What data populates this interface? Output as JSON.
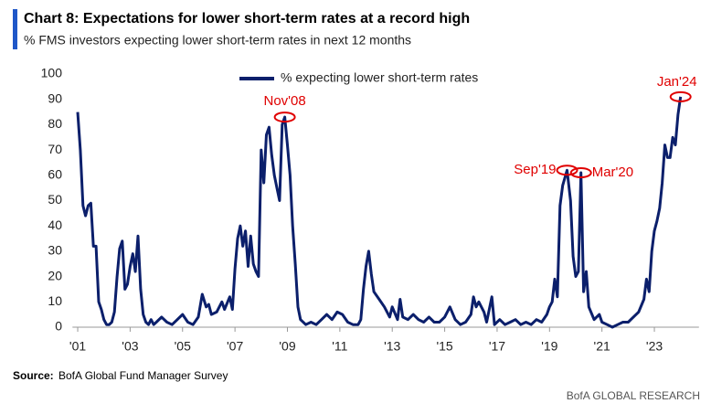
{
  "chart_data": {
    "type": "line",
    "title": "Chart 8: Expectations for lower short-term rates at a record high",
    "subtitle": "% FMS investors expecting lower short-term rates in next 12 months",
    "source_label": "Source:",
    "source": "BofA Global Fund Manager Survey",
    "brand": "BofA GLOBAL RESEARCH",
    "legend_position": "top",
    "grid": false,
    "xlim": [
      2000.8,
      2024.7
    ],
    "xticks": [
      {
        "value": 2001,
        "label": "'01"
      },
      {
        "value": 2003,
        "label": "'03"
      },
      {
        "value": 2005,
        "label": "'05"
      },
      {
        "value": 2007,
        "label": "'07"
      },
      {
        "value": 2009,
        "label": "'09"
      },
      {
        "value": 2011,
        "label": "'11"
      },
      {
        "value": 2013,
        "label": "'13"
      },
      {
        "value": 2015,
        "label": "'15"
      },
      {
        "value": 2017,
        "label": "'17"
      },
      {
        "value": 2019,
        "label": "'19"
      },
      {
        "value": 2021,
        "label": "'21"
      },
      {
        "value": 2023,
        "label": "'23"
      }
    ],
    "ylim": [
      0,
      100
    ],
    "yticks": [
      0,
      10,
      20,
      30,
      40,
      50,
      60,
      70,
      80,
      90,
      100
    ],
    "x": [
      2001.0,
      2001.1,
      2001.2,
      2001.3,
      2001.4,
      2001.5,
      2001.6,
      2001.7,
      2001.8,
      2001.9,
      2002.0,
      2002.1,
      2002.2,
      2002.3,
      2002.4,
      2002.5,
      2002.6,
      2002.7,
      2002.8,
      2002.9,
      2003.0,
      2003.1,
      2003.2,
      2003.3,
      2003.4,
      2003.5,
      2003.6,
      2003.7,
      2003.8,
      2003.9,
      2004.0,
      2004.2,
      2004.4,
      2004.6,
      2004.8,
      2005.0,
      2005.2,
      2005.4,
      2005.6,
      2005.75,
      2005.9,
      2006.0,
      2006.1,
      2006.3,
      2006.5,
      2006.6,
      2006.8,
      2006.9,
      2007.0,
      2007.1,
      2007.2,
      2007.3,
      2007.4,
      2007.5,
      2007.6,
      2007.7,
      2007.8,
      2007.9,
      2008.0,
      2008.1,
      2008.2,
      2008.3,
      2008.4,
      2008.5,
      2008.6,
      2008.7,
      2008.8,
      2008.9,
      2009.0,
      2009.1,
      2009.2,
      2009.3,
      2009.4,
      2009.5,
      2009.7,
      2009.9,
      2010.1,
      2010.3,
      2010.5,
      2010.7,
      2010.9,
      2011.1,
      2011.3,
      2011.5,
      2011.7,
      2011.8,
      2011.9,
      2012.0,
      2012.1,
      2012.2,
      2012.3,
      2012.5,
      2012.7,
      2012.9,
      2013.0,
      2013.2,
      2013.3,
      2013.4,
      2013.6,
      2013.8,
      2014.0,
      2014.2,
      2014.4,
      2014.6,
      2014.8,
      2015.0,
      2015.2,
      2015.4,
      2015.6,
      2015.8,
      2016.0,
      2016.1,
      2016.2,
      2016.3,
      2016.5,
      2016.6,
      2016.8,
      2016.9,
      2017.1,
      2017.3,
      2017.5,
      2017.7,
      2017.9,
      2018.1,
      2018.3,
      2018.5,
      2018.7,
      2018.9,
      2019.0,
      2019.1,
      2019.2,
      2019.3,
      2019.4,
      2019.5,
      2019.67,
      2019.8,
      2019.9,
      2020.0,
      2020.1,
      2020.2,
      2020.3,
      2020.4,
      2020.5,
      2020.7,
      2020.9,
      2021.0,
      2021.2,
      2021.4,
      2021.6,
      2021.8,
      2022.0,
      2022.2,
      2022.4,
      2022.6,
      2022.7,
      2022.8,
      2022.9,
      2023.0,
      2023.1,
      2023.2,
      2023.3,
      2023.4,
      2023.5,
      2023.6,
      2023.7,
      2023.8,
      2023.9,
      2024.0
    ],
    "series": [
      {
        "name": "% expecting lower short-term rates",
        "color": "#0b1f6b",
        "values": [
          85,
          70,
          48,
          44,
          48,
          49,
          32,
          32,
          10,
          7,
          3,
          1,
          1,
          2,
          6,
          20,
          31,
          34,
          15,
          17,
          24,
          29,
          22,
          36,
          15,
          5,
          2,
          1,
          3,
          1,
          2,
          4,
          2,
          1,
          3,
          5,
          2,
          1,
          4,
          13,
          8,
          9,
          5,
          6,
          10,
          7,
          12,
          7,
          23,
          35,
          40,
          32,
          38,
          24,
          36,
          25,
          22,
          20,
          70,
          57,
          76,
          79,
          68,
          60,
          55,
          50,
          80,
          83,
          72,
          60,
          40,
          25,
          8,
          3,
          1,
          2,
          1,
          3,
          5,
          3,
          6,
          5,
          2,
          1,
          1,
          3,
          15,
          24,
          30,
          21,
          14,
          11,
          8,
          4,
          8,
          3,
          11,
          4,
          3,
          5,
          3,
          2,
          4,
          2,
          2,
          4,
          8,
          3,
          1,
          2,
          5,
          12,
          8,
          10,
          6,
          2,
          12,
          1,
          3,
          1,
          2,
          3,
          1,
          2,
          1,
          3,
          2,
          5,
          8,
          10,
          19,
          12,
          48,
          56,
          62,
          50,
          28,
          20,
          22,
          61,
          14,
          22,
          8,
          3,
          5,
          2,
          1,
          0,
          1,
          2,
          2,
          4,
          6,
          11,
          19,
          14,
          30,
          38,
          42,
          47,
          57,
          72,
          67,
          67,
          75,
          72,
          84,
          91
        ]
      }
    ],
    "annotations": [
      {
        "text": "Nov'08",
        "x": 2008.9,
        "y": 83
      },
      {
        "text": "Sep'19",
        "x": 2019.67,
        "y": 62
      },
      {
        "text": "Mar'20",
        "x": 2020.2,
        "y": 61
      },
      {
        "text": "Jan'24",
        "x": 2024.0,
        "y": 91
      }
    ]
  }
}
